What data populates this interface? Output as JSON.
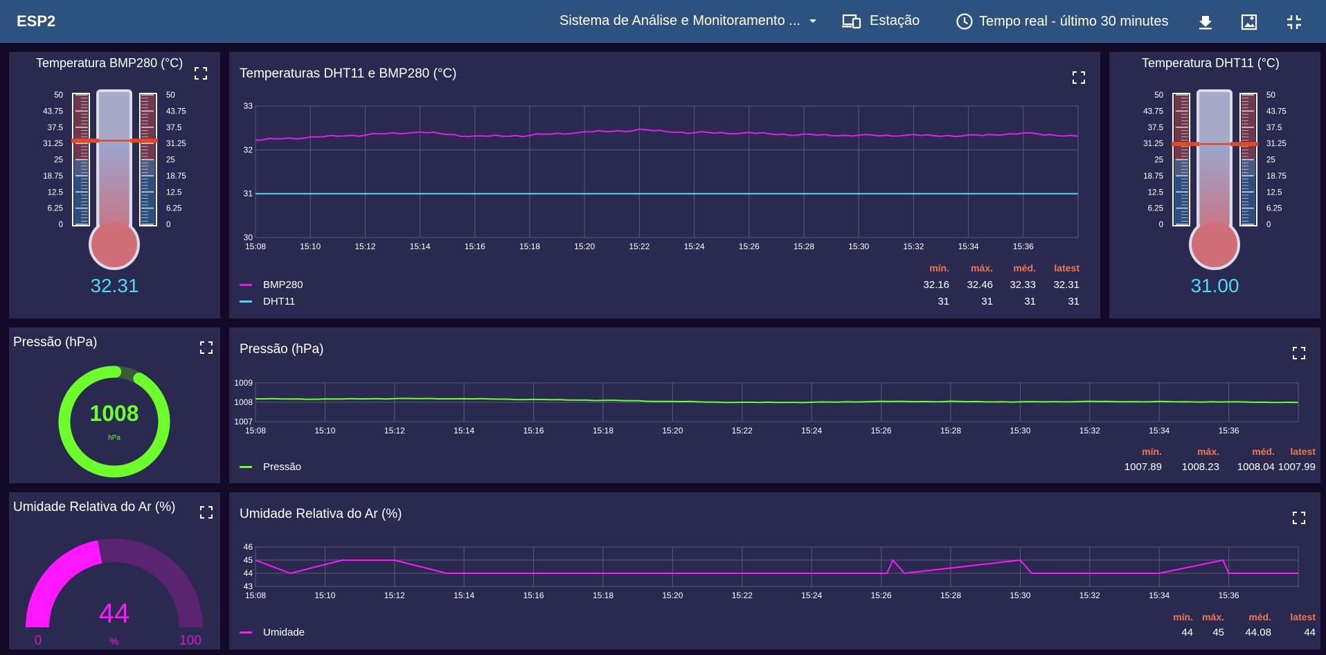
{
  "header": {
    "title": "ESP2",
    "dashboard_selector": "Sistema de Análise e Monitoramento ...",
    "station_label": "Estação",
    "timewindow_label": "Tempo real - último 30 minutes"
  },
  "colors": {
    "header_bg": "#2e527f",
    "card_bg": "#2a2950",
    "page_bg": "#120a26",
    "bmp": "#e020e6",
    "dht": "#4fd9f5",
    "pressure": "#6cff2a",
    "humidity": "#ff18ff",
    "stat_header": "#f0784c"
  },
  "temp_bmp": {
    "title": "Temperatura BMP280 (°C)",
    "value": "32.31",
    "value_num": 32.31,
    "scale": [
      "50",
      "43.75",
      "37.5",
      "31.25",
      "25",
      "18.75",
      "12.5",
      "6.25",
      "0"
    ]
  },
  "temp_dht": {
    "title": "Temperatura DHT11 (°C)",
    "value": "31.00",
    "value_num": 31.0,
    "scale": [
      "50",
      "43.75",
      "37.5",
      "31.25",
      "25",
      "18.75",
      "12.5",
      "6.25",
      "0"
    ]
  },
  "temp_chart": {
    "title": "Temperaturas DHT11 e BMP280 (°C)",
    "stat_headers": [
      "mín.",
      "máx.",
      "méd.",
      "latest"
    ],
    "series": [
      {
        "name": "BMP280",
        "stats": [
          "32.16",
          "32.46",
          "32.33",
          "32.31"
        ]
      },
      {
        "name": "DHT11",
        "stats": [
          "31",
          "31",
          "31",
          "31"
        ]
      }
    ]
  },
  "pressure_gauge": {
    "title": "Pressão (hPa)",
    "value": "1008",
    "unit": "hPa",
    "fraction": 0.92
  },
  "pressure_chart": {
    "title": "Pressão (hPa)",
    "stat_headers": [
      "mín.",
      "máx.",
      "méd.",
      "latest"
    ],
    "series": [
      {
        "name": "Pressão",
        "stats": [
          "1007.89",
          "1008.23",
          "1008.04",
          "1007.99"
        ]
      }
    ]
  },
  "humidity_gauge": {
    "title": "Umidade Relativa do Ar (%)",
    "value": "44",
    "unit": "%",
    "min": "0",
    "max": "100",
    "fraction": 0.44
  },
  "humidity_chart": {
    "title": "Umidade Relativa do Ar (%)",
    "stat_headers": [
      "mín.",
      "máx.",
      "méd.",
      "latest"
    ],
    "series": [
      {
        "name": "Umidade",
        "stats": [
          "44",
          "45",
          "44.08",
          "44"
        ]
      }
    ]
  },
  "chart_data": [
    {
      "type": "line",
      "title": "Temperaturas DHT11 e BMP280 (°C)",
      "x": [
        "15:08",
        "15:10",
        "15:12",
        "15:14",
        "15:16",
        "15:18",
        "15:20",
        "15:22",
        "15:24",
        "15:26",
        "15:28",
        "15:30",
        "15:32",
        "15:34",
        "15:36",
        "15:38"
      ],
      "x_ticks": [
        "15:08",
        "15:10",
        "15:12",
        "15:14",
        "15:16",
        "15:18",
        "15:20",
        "15:22",
        "15:24",
        "15:26",
        "15:28",
        "15:30",
        "15:32",
        "15:34",
        "15:36"
      ],
      "ylim": [
        30,
        33
      ],
      "y_ticks": [
        "30",
        "31",
        "32",
        "33"
      ],
      "grid": true,
      "legend": "bottom-left",
      "series": [
        {
          "name": "BMP280",
          "values": [
            32.22,
            32.28,
            32.34,
            32.4,
            32.3,
            32.33,
            32.4,
            32.45,
            32.39,
            32.38,
            32.34,
            32.33,
            32.33,
            32.32,
            32.38,
            32.31
          ]
        },
        {
          "name": "DHT11",
          "values": [
            31,
            31,
            31,
            31,
            31,
            31,
            31,
            31,
            31,
            31,
            31,
            31,
            31,
            31,
            31,
            31
          ]
        }
      ]
    },
    {
      "type": "line",
      "title": "Pressão (hPa)",
      "x": [
        "15:08",
        "15:10",
        "15:12",
        "15:14",
        "15:16",
        "15:18",
        "15:20",
        "15:22",
        "15:24",
        "15:26",
        "15:28",
        "15:30",
        "15:32",
        "15:34",
        "15:36",
        "15:38"
      ],
      "x_ticks": [
        "15:08",
        "15:10",
        "15:12",
        "15:14",
        "15:16",
        "15:18",
        "15:20",
        "15:22",
        "15:24",
        "15:26",
        "15:28",
        "15:30",
        "15:32",
        "15:34",
        "15:36"
      ],
      "ylim": [
        1007,
        1009
      ],
      "y_ticks": [
        "1007",
        "1008",
        "1009"
      ],
      "grid": true,
      "legend": "bottom-left",
      "series": [
        {
          "name": "Pressão",
          "values": [
            1008.18,
            1008.16,
            1008.19,
            1008.18,
            1008.14,
            1008.1,
            1008.04,
            1007.99,
            1008.0,
            1008.04,
            1008.04,
            1008.02,
            1008.04,
            1008.03,
            1008.02,
            1007.99
          ]
        }
      ]
    },
    {
      "type": "line",
      "title": "Umidade Relativa do Ar (%)",
      "x": [
        "15:08",
        "15:10",
        "15:12",
        "15:14",
        "15:16",
        "15:18",
        "15:20",
        "15:22",
        "15:24",
        "15:26",
        "15:28",
        "15:30",
        "15:32",
        "15:34",
        "15:36",
        "15:38"
      ],
      "x_ticks": [
        "15:08",
        "15:10",
        "15:12",
        "15:14",
        "15:16",
        "15:18",
        "15:20",
        "15:22",
        "15:24",
        "15:26",
        "15:28",
        "15:30",
        "15:32",
        "15:34",
        "15:36"
      ],
      "ylim": [
        43,
        46
      ],
      "y_ticks": [
        "43",
        "44",
        "45",
        "46"
      ],
      "grid": true,
      "legend": "bottom-left",
      "series": [
        {
          "name": "Umidade",
          "values": [
            45,
            44,
            45,
            45,
            44,
            44,
            44,
            44,
            44,
            44,
            45,
            44,
            45,
            44,
            44,
            45,
            44,
            44,
            44
          ],
          "x": [
            "15:08",
            "15:09",
            "15:10:30",
            "15:12",
            "15:13:30",
            "15:14",
            "15:18",
            "15:22",
            "15:26",
            "15:26:10",
            "15:26:20",
            "15:26:40",
            "15:30",
            "15:30:20",
            "15:34",
            "15:35:50",
            "15:36",
            "15:37",
            "15:38"
          ]
        }
      ]
    }
  ]
}
